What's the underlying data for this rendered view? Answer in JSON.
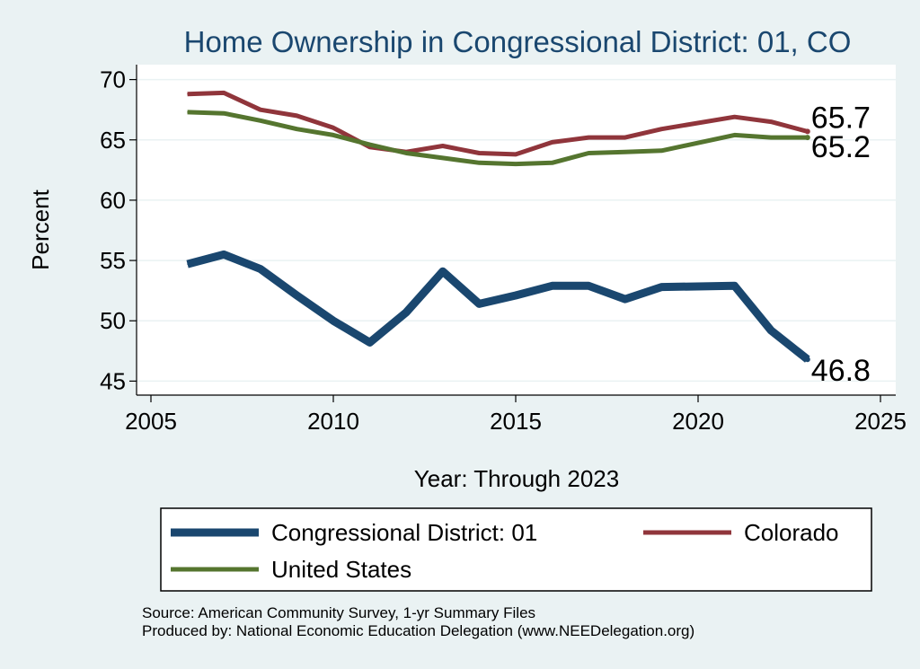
{
  "chart_data": {
    "type": "line",
    "title": "Home Ownership in Congressional District:  01, CO",
    "xlabel": "Year: Through 2023",
    "ylabel": "Percent",
    "xlim": [
      2005,
      2025
    ],
    "ylim": [
      45,
      70
    ],
    "x_ticks": [
      2005,
      2010,
      2015,
      2020,
      2025
    ],
    "y_ticks": [
      45,
      50,
      55,
      60,
      65,
      70
    ],
    "grid": true,
    "x": [
      2006,
      2007,
      2008,
      2009,
      2010,
      2011,
      2012,
      2013,
      2014,
      2015,
      2016,
      2017,
      2018,
      2019,
      2021,
      2022,
      2023
    ],
    "series": [
      {
        "name": "Congressional District:  01",
        "color": "#1a476f",
        "values": [
          54.7,
          55.5,
          54.3,
          52.1,
          50.0,
          48.2,
          50.7,
          54.1,
          51.4,
          52.1,
          52.9,
          52.9,
          51.8,
          52.8,
          52.9,
          49.2,
          46.8
        ],
        "end_label": "46.8"
      },
      {
        "name": "Colorado",
        "color": "#90353b",
        "values": [
          68.8,
          68.9,
          67.5,
          67.0,
          66.0,
          64.4,
          64.0,
          64.5,
          63.9,
          63.8,
          64.8,
          65.2,
          65.2,
          65.9,
          66.9,
          66.5,
          65.7
        ],
        "end_label": "65.7"
      },
      {
        "name": "United States",
        "color": "#55752f",
        "values": [
          67.3,
          67.2,
          66.6,
          65.9,
          65.4,
          64.6,
          63.9,
          63.5,
          63.1,
          63.0,
          63.1,
          63.9,
          64.0,
          64.1,
          65.4,
          65.2,
          65.2
        ],
        "end_label": "65.2"
      }
    ],
    "legend_position": "bottom"
  },
  "source": {
    "line1": "Source: American Community Survey, 1-yr Summary Files",
    "line2": "Produced by: National Economic Education Delegation (www.NEEDelegation.org)"
  }
}
